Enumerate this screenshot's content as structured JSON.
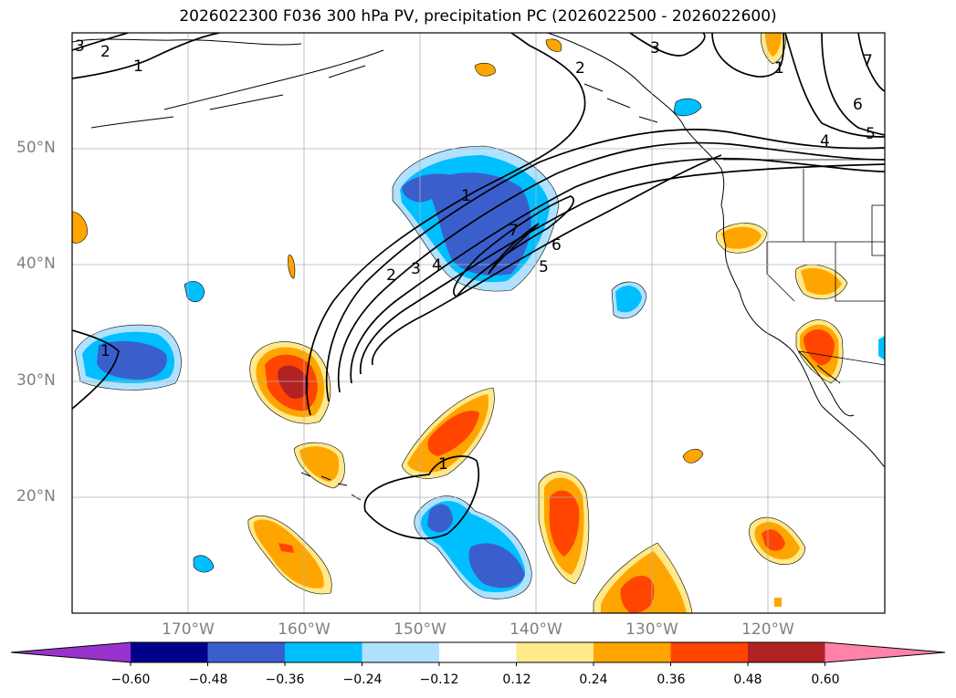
{
  "title": "2026022300 F036 300 hPa PV, precipitation PC (2026022500 - 2026022600)",
  "lat_labels": [
    "50°N",
    "40°N",
    "30°N",
    "20°N"
  ],
  "lon_labels": [
    "170°W",
    "160°W",
    "150°W",
    "140°W",
    "130°W",
    "120°W"
  ],
  "colorbar": {
    "ticks": [
      "−0.60",
      "−0.48",
      "−0.36",
      "−0.24",
      "−0.12",
      "0.12",
      "0.24",
      "0.36",
      "0.48",
      "0.60"
    ],
    "colors": [
      "#9a32cd",
      "#00008b",
      "#3a5fcd",
      "#00bfff",
      "#b0e2ff",
      "#ffffff",
      "#ffe98a",
      "#ffa500",
      "#ff4500",
      "#b22222",
      "#ff83a8"
    ]
  },
  "contour_labels": [
    "3",
    "2",
    "1",
    "3",
    "2",
    "1",
    "1",
    "2",
    "3",
    "4",
    "7",
    "6",
    "5",
    "1",
    "1",
    "7",
    "6",
    "5",
    "4"
  ],
  "colors": {
    "ocean": "#ffffff",
    "grid": "#b0b0b0",
    "contour": "#000000",
    "label": "#808080"
  }
}
